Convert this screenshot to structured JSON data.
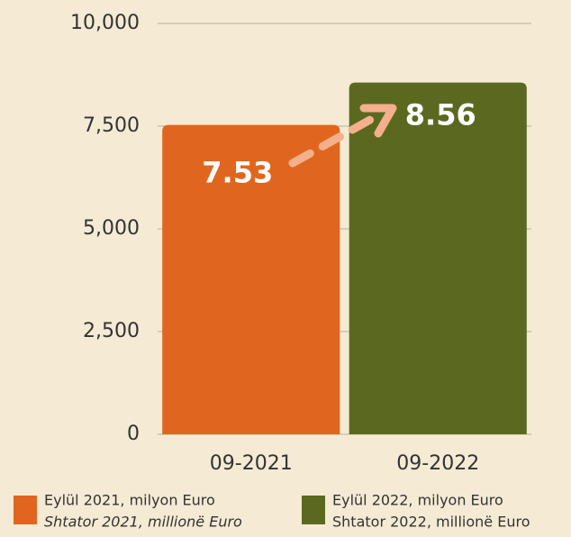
{
  "chart_data": {
    "type": "bar",
    "categories": [
      "09-2021",
      "09-2022"
    ],
    "values": [
      7530,
      8560
    ],
    "value_labels": [
      "7.53",
      "8.56"
    ],
    "colors": [
      "#e0661f",
      "#5a691f"
    ],
    "ylim": [
      0,
      10000
    ],
    "yticks": [
      0,
      {
        "value": 2500,
        "label": "2,500"
      },
      {
        "value": 5000,
        "label": "5,000"
      },
      {
        "value": 7500,
        "label": "7,500"
      },
      {
        "value": 10000,
        "label": "10,000"
      }
    ],
    "grid": true,
    "legend": [
      {
        "color": "#e0661f",
        "lines": [
          "Eylül 2021, milyon Euro",
          "Shtator 2021, millionë Euro"
        ]
      },
      {
        "color": "#5a691f",
        "lines": [
          "Eylül 2022,  milyon Euro",
          "Shtator 2022, millionë Euro"
        ]
      }
    ]
  }
}
